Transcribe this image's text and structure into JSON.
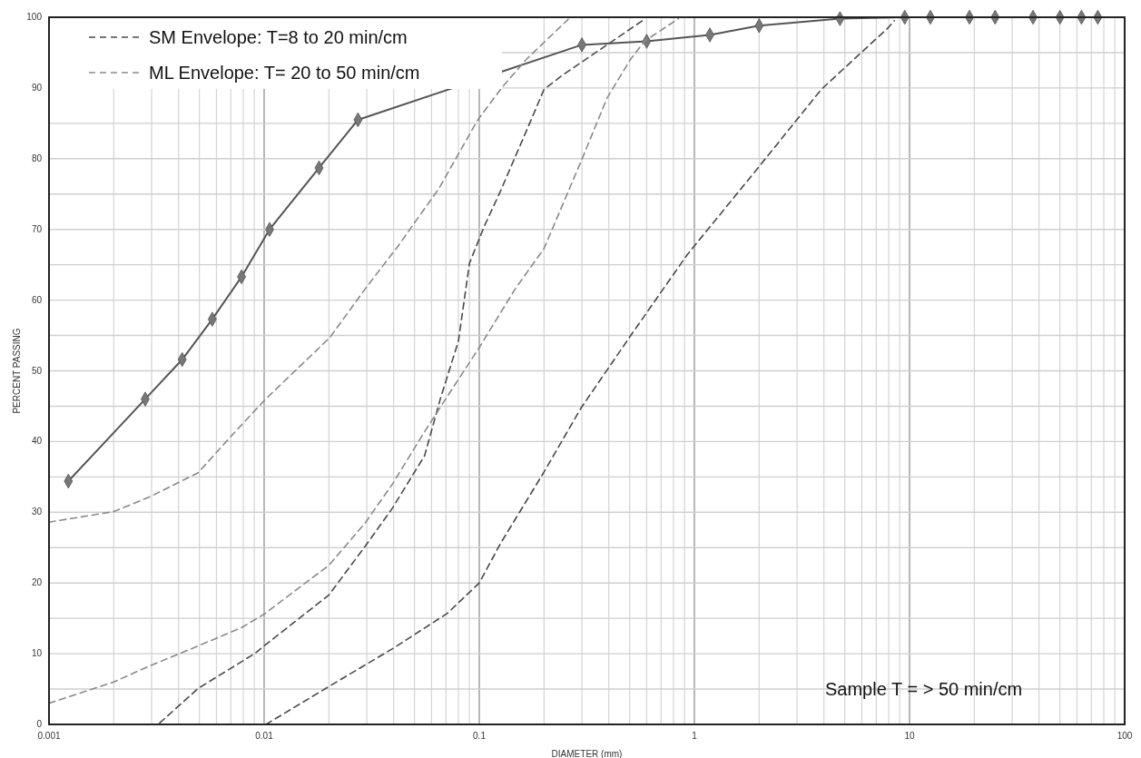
{
  "chart_data": {
    "type": "line",
    "xlabel": "DIAMETER (mm)",
    "ylabel": "PERCENT PASSING",
    "log": "x",
    "xlim": [
      0.001,
      100
    ],
    "ylim": [
      0,
      100
    ],
    "xticks": [
      0.001,
      {
        "value": 0.002,
        "label": null
      },
      {
        "value": 0.003,
        "label": null
      },
      {
        "value": 0.004,
        "label": null
      },
      {
        "value": 0.005,
        "label": null
      },
      {
        "value": 0.006,
        "label": null
      },
      {
        "value": 0.007,
        "label": null
      },
      {
        "value": 0.008,
        "label": null
      },
      {
        "value": 0.009,
        "label": null
      },
      0.01,
      {
        "value": 0.02,
        "label": null
      },
      {
        "value": 0.03,
        "label": null
      },
      {
        "value": 0.04,
        "label": null
      },
      {
        "value": 0.05,
        "label": null
      },
      {
        "value": 0.06,
        "label": null
      },
      {
        "value": 0.07,
        "label": null
      },
      {
        "value": 0.08,
        "label": null
      },
      {
        "value": 0.09,
        "label": null
      },
      0.1,
      {
        "value": 0.2,
        "label": null
      },
      {
        "value": 0.3,
        "label": null
      },
      {
        "value": 0.4,
        "label": null
      },
      {
        "value": 0.5,
        "label": null
      },
      {
        "value": 0.6,
        "label": null
      },
      {
        "value": 0.7,
        "label": null
      },
      {
        "value": 0.8,
        "label": null
      },
      {
        "value": 0.9,
        "label": null
      },
      1,
      {
        "value": 2,
        "label": null
      },
      {
        "value": 3,
        "label": null
      },
      {
        "value": 4,
        "label": null
      },
      {
        "value": 5,
        "label": null
      },
      {
        "value": 6,
        "label": null
      },
      {
        "value": 7,
        "label": null
      },
      {
        "value": 8,
        "label": null
      },
      {
        "value": 9,
        "label": null
      },
      10,
      {
        "value": 20,
        "label": null
      },
      {
        "value": 30,
        "label": null
      },
      {
        "value": 40,
        "label": null
      },
      {
        "value": 50,
        "label": null
      },
      {
        "value": 60,
        "label": null
      },
      {
        "value": 70,
        "label": null
      },
      {
        "value": 80,
        "label": null
      },
      {
        "value": 90,
        "label": null
      },
      100
    ],
    "yticks": [
      0,
      {
        "value": 5,
        "label": null
      },
      10,
      {
        "value": 15,
        "label": null
      },
      20,
      {
        "value": 25,
        "label": null
      },
      30,
      {
        "value": 35,
        "label": null
      },
      40,
      {
        "value": 45,
        "label": null
      },
      50,
      {
        "value": 55,
        "label": null
      },
      60,
      {
        "value": 65,
        "label": null
      },
      70,
      {
        "value": 75,
        "label": null
      },
      80,
      {
        "value": 85,
        "label": null
      },
      90,
      {
        "value": 95,
        "label": null
      },
      100
    ],
    "grid": true,
    "legend": "top left",
    "annotations": [
      "Sample T = > 50 min/cm"
    ],
    "series": [
      {
        "color": "#555555",
        "line_style": "solid",
        "marker": "diamond",
        "x": [
          0.00123,
          0.0028,
          0.00416,
          0.00574,
          0.00785,
          0.0106,
          0.018,
          0.0273,
          0.3,
          0.6,
          1.18,
          2,
          4.75,
          9.5,
          12.5,
          19,
          25,
          37.5,
          50,
          63,
          75
        ],
        "values": [
          34.4,
          46,
          51.6,
          57.3,
          63.3,
          70,
          78.7,
          85.5,
          96.1,
          96.6,
          97.5,
          98.8,
          99.8,
          100,
          100,
          100,
          100,
          100,
          100,
          100,
          100
        ]
      },
      {
        "name": "SM Envelope: T=8 to 20 min/cm",
        "color": "#4a4a4a",
        "line_style": "dashed",
        "marker": "none",
        "x": [
          0.0102,
          0.0201,
          0.0395,
          0.071,
          0.1,
          0.125,
          0.2,
          0.298,
          0.506,
          0.925,
          1.94,
          3.89,
          7.95,
          8.5
        ],
        "values": [
          0,
          5.4,
          10.7,
          15.7,
          20,
          25.5,
          35.7,
          44.8,
          55,
          66.4,
          78.4,
          89.8,
          98.5,
          99.5
        ]
      },
      {
        "color": "#4a4a4a",
        "line_style": "dashed",
        "marker": "none",
        "x": [
          0.00327,
          0.00494,
          0.00902,
          0.01,
          0.02,
          0.0295,
          0.0395,
          0.0557,
          0.066,
          0.08,
          0.09,
          0.105,
          0.125,
          0.166,
          0.2,
          0.241,
          0.585
        ],
        "values": [
          0.2,
          5.1,
          10,
          11.1,
          18.3,
          25.2,
          30.6,
          38,
          46.1,
          54.2,
          65.2,
          70.3,
          75.3,
          84,
          89.8,
          91.7,
          99.7
        ]
      },
      {
        "name": "ML Envelope: T= 20 to 50 min/cm",
        "color": "#8a8a8a",
        "line_style": "dashed",
        "marker": "none",
        "x": [
          0.001,
          0.002,
          0.00295,
          0.00494,
          0.00685,
          0.01,
          0.0202,
          0.0295,
          0.0416,
          0.065,
          0.098,
          0.127,
          0.166,
          0.259
        ],
        "values": [
          28.6,
          30.1,
          32.2,
          35.6,
          40.4,
          45.8,
          54.7,
          61.6,
          67.5,
          75.8,
          85.4,
          90,
          94.1,
          99.7
        ]
      },
      {
        "color": "#8a8a8a",
        "line_style": "dashed",
        "marker": "none",
        "x": [
          0.001,
          0.002,
          0.00295,
          0.00494,
          0.00787,
          0.01,
          0.02,
          0.0295,
          0.0395,
          0.0557,
          0.0697,
          0.1,
          0.147,
          0.2,
          0.297,
          0.393,
          0.506,
          0.585,
          0.843
        ],
        "values": [
          3,
          6,
          8.3,
          11.1,
          13.7,
          15.6,
          22.5,
          28.5,
          34,
          41.4,
          46,
          53.3,
          61.6,
          67.3,
          79.6,
          88.6,
          94.1,
          96.6,
          99.8
        ]
      }
    ]
  }
}
